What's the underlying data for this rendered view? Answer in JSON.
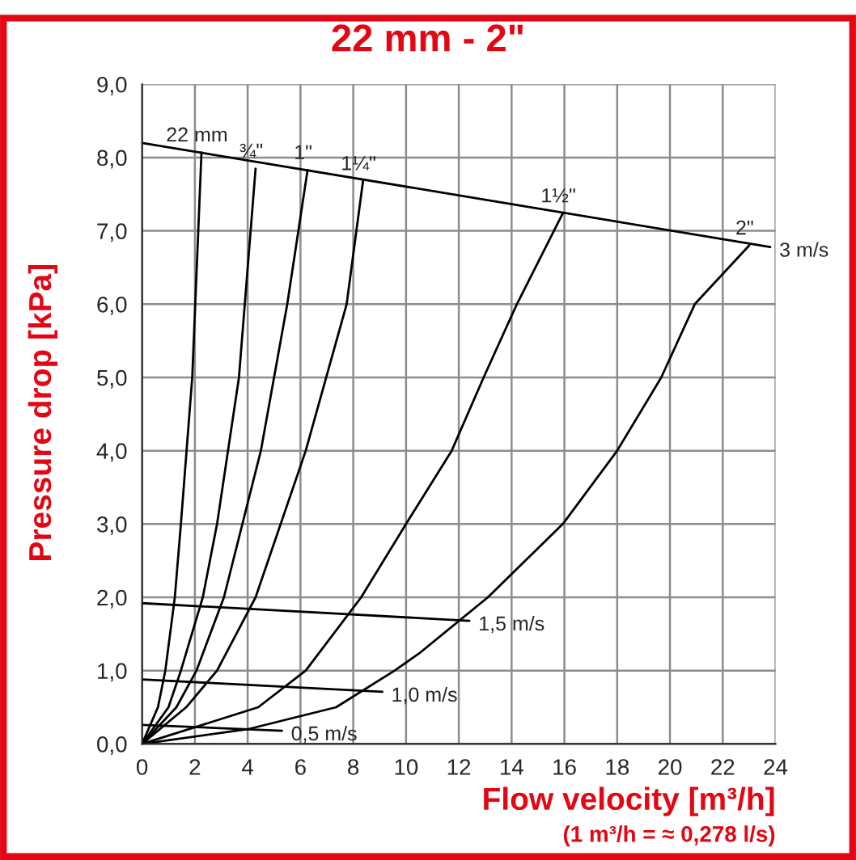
{
  "chart_data": {
    "type": "line",
    "title": "22 mm - 2\"",
    "xlabel": "Flow velocity [m³/h]",
    "ylabel": "Pressure drop [kPa]",
    "annotations": [
      "(1 m³/h = ≈ 0,278 l/s)"
    ],
    "xlim": [
      0,
      24
    ],
    "xticks": [
      0,
      2,
      4,
      6,
      8,
      10,
      12,
      14,
      16,
      18,
      20,
      22,
      24
    ],
    "ylim": [
      0,
      9
    ],
    "yticks": [
      {
        "value": 0,
        "label": "0,0"
      },
      {
        "value": 1,
        "label": "1,0"
      },
      {
        "value": 2,
        "label": "2,0"
      },
      {
        "value": 3,
        "label": "3,0"
      },
      {
        "value": 4,
        "label": "4,0"
      },
      {
        "value": 5,
        "label": "5,0"
      },
      {
        "value": 6,
        "label": "6,0"
      },
      {
        "value": 7,
        "label": "7,0"
      },
      {
        "value": 8,
        "label": "8,0"
      },
      {
        "value": 9,
        "label": "9,0"
      }
    ],
    "grid": true,
    "legend": false,
    "marker": "none",
    "line_style": "solid",
    "series": [
      {
        "name": "22 mm",
        "color": "#000000",
        "x": [
          0,
          0.6,
          0.88,
          1.24,
          1.47,
          1.9,
          2.25
        ],
        "values": [
          0,
          0.5,
          1,
          2,
          3,
          5,
          8.07
        ]
      },
      {
        "name": "¾\"",
        "color": "#000000",
        "x": [
          0,
          1.0,
          1.47,
          2.3,
          2.84,
          3.67,
          4.3
        ],
        "values": [
          0,
          0.5,
          1,
          2,
          3,
          5,
          7.85
        ]
      },
      {
        "name": "1\"",
        "color": "#000000",
        "x": [
          0,
          1.3,
          2.06,
          3.1,
          4.5,
          5.5,
          6.27
        ],
        "values": [
          0,
          0.5,
          1,
          2,
          4,
          6,
          7.83
        ]
      },
      {
        "name": "1¼\"",
        "color": "#000000",
        "x": [
          0,
          1.67,
          2.84,
          4.3,
          6.2,
          7.75,
          8.37
        ],
        "values": [
          0,
          0.5,
          1,
          2,
          4,
          6,
          7.68
        ]
      },
      {
        "name": "1½\"",
        "color": "#000000",
        "x": [
          0,
          4.4,
          6.2,
          8.3,
          10.0,
          11.73,
          12.94,
          14.2,
          15.94
        ],
        "values": [
          0,
          0.5,
          1,
          2,
          3,
          4,
          5,
          6,
          7.24
        ]
      },
      {
        "name": "2\"",
        "color": "#000000",
        "x": [
          0,
          4.0,
          7.35,
          9.57,
          10.55,
          13.1,
          15.94,
          18.0,
          19.67,
          20.94,
          23.0
        ],
        "values": [
          0,
          0.2,
          0.5,
          1,
          1.25,
          2,
          3,
          4,
          5,
          6,
          6.8
        ]
      },
      {
        "name": "3 m/s",
        "color": "#000000",
        "x": [
          0,
          23.8
        ],
        "values": [
          8.2,
          6.78
        ]
      },
      {
        "name": "1,5 m/s",
        "color": "#000000",
        "x": [
          0,
          12.4
        ],
        "values": [
          1.92,
          1.68
        ]
      },
      {
        "name": "1,0 m/s",
        "color": "#000000",
        "x": [
          0,
          9.1
        ],
        "values": [
          0.88,
          0.71
        ]
      },
      {
        "name": "0,5 m/s",
        "color": "#000000",
        "x": [
          0,
          5.3
        ],
        "values": [
          0.26,
          0.18
        ]
      }
    ]
  }
}
